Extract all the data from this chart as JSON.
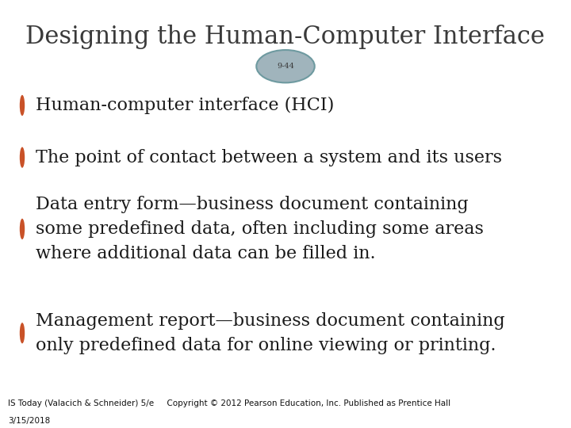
{
  "title": "Designing the Human-Computer Interface",
  "slide_number": "9-44",
  "bg_white": "#ffffff",
  "bg_content": "#b2bfc8",
  "bg_footer": "#6e9aa0",
  "title_color": "#3a3a3a",
  "text_color": "#1a1a1a",
  "bullet_color": "#c95228",
  "slide_num_bg": "#a0b4bc",
  "slide_num_border": "#6e9aa0",
  "footer_left": "IS Today (Valacich & Schneider) 5/e     Copyright © 2012 Pearson Education, Inc. Published as Prentice Hall",
  "footer_date": "3/15/2018",
  "title_fontsize": 22,
  "bullet_fontsize": 16,
  "footer_fontsize": 7.5,
  "slide_num_fontsize": 7,
  "bullets": [
    "Human-computer interface (HCI)",
    "The point of contact between a system and its users",
    "Data entry form—business document containing\nsome predefined data, often including some areas\nwhere additional data can be filled in.",
    "Management report—business document containing\nonly predefined data for online viewing or printing."
  ]
}
